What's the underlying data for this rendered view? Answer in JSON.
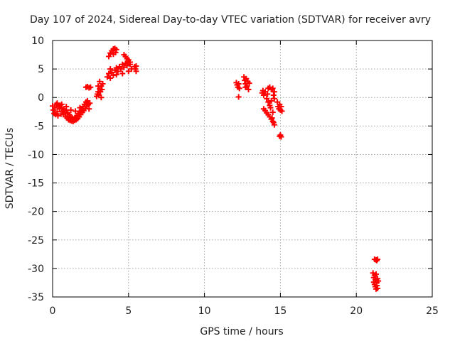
{
  "chart_data": {
    "type": "scatter",
    "title": "Day 107 of 2024, Sidereal Day-to-day VTEC variation (SDTVAR) for receiver avry",
    "xlabel": "GPS time / hours",
    "ylabel": "SDTVAR / TECUs",
    "xlim": [
      0,
      25
    ],
    "ylim": [
      -35,
      10
    ],
    "xticks": [
      0,
      5,
      10,
      15,
      20,
      25
    ],
    "yticks": [
      10,
      5,
      0,
      -5,
      -10,
      -15,
      -20,
      -25,
      -30,
      -35
    ],
    "grid": true,
    "marker": "plus",
    "series": [
      {
        "name": "SDTVAR",
        "color": "#ff0000",
        "points": [
          [
            0.0,
            -1.5
          ],
          [
            0.05,
            -2.2
          ],
          [
            0.1,
            -2.8
          ],
          [
            0.15,
            -1.8
          ],
          [
            0.2,
            -3.0
          ],
          [
            0.25,
            -1.2
          ],
          [
            0.3,
            -2.5
          ],
          [
            0.35,
            -3.2
          ],
          [
            0.4,
            -1.6
          ],
          [
            0.45,
            -2.0
          ],
          [
            0.5,
            -1.4
          ],
          [
            0.55,
            -2.9
          ],
          [
            0.6,
            -1.8
          ],
          [
            0.65,
            -2.4
          ],
          [
            0.7,
            -3.0
          ],
          [
            0.75,
            -2.0
          ],
          [
            0.8,
            -2.6
          ],
          [
            0.85,
            -3.3
          ],
          [
            0.9,
            -2.2
          ],
          [
            0.95,
            -3.6
          ],
          [
            1.0,
            -2.8
          ],
          [
            1.05,
            -3.9
          ],
          [
            1.1,
            -3.0
          ],
          [
            1.15,
            -4.0
          ],
          [
            1.2,
            -3.4
          ],
          [
            1.25,
            -4.1
          ],
          [
            1.3,
            -3.6
          ],
          [
            1.35,
            -4.2
          ],
          [
            1.4,
            -3.8
          ],
          [
            1.45,
            -4.0
          ],
          [
            1.5,
            -3.5
          ],
          [
            1.55,
            -3.9
          ],
          [
            1.6,
            -3.2
          ],
          [
            1.65,
            -3.7
          ],
          [
            1.7,
            -2.8
          ],
          [
            1.75,
            -3.4
          ],
          [
            1.8,
            -2.5
          ],
          [
            1.85,
            -3.0
          ],
          [
            1.9,
            -2.2
          ],
          [
            1.95,
            -2.6
          ],
          [
            2.0,
            -1.6
          ],
          [
            2.05,
            -2.3
          ],
          [
            2.1,
            -1.2
          ],
          [
            2.15,
            -1.9
          ],
          [
            2.2,
            -0.8
          ],
          [
            2.25,
            -1.5
          ],
          [
            2.3,
            -0.6
          ],
          [
            2.35,
            -1.2
          ],
          [
            2.4,
            -2.0
          ],
          [
            2.45,
            -1.0
          ],
          [
            0.3,
            -1.0
          ],
          [
            0.6,
            -1.2
          ],
          [
            0.9,
            -1.6
          ],
          [
            1.2,
            -2.2
          ],
          [
            1.5,
            -2.4
          ],
          [
            1.8,
            -1.8
          ],
          [
            2.2,
            1.8
          ],
          [
            2.3,
            1.9
          ],
          [
            2.4,
            1.7
          ],
          [
            2.5,
            1.8
          ],
          [
            2.9,
            0.2
          ],
          [
            2.95,
            0.6
          ],
          [
            3.0,
            1.0
          ],
          [
            3.05,
            0.4
          ],
          [
            3.1,
            1.5
          ],
          [
            3.15,
            1.0
          ],
          [
            3.2,
            2.0
          ],
          [
            3.25,
            1.4
          ],
          [
            3.3,
            2.4
          ],
          [
            3.0,
            2.0
          ],
          [
            3.1,
            2.8
          ],
          [
            3.2,
            0.0
          ],
          [
            3.6,
            3.6
          ],
          [
            3.7,
            4.2
          ],
          [
            3.8,
            5.0
          ],
          [
            3.9,
            4.4
          ],
          [
            4.0,
            3.9
          ],
          [
            4.1,
            4.8
          ],
          [
            4.2,
            5.2
          ],
          [
            4.3,
            4.6
          ],
          [
            4.4,
            5.4
          ],
          [
            4.5,
            5.0
          ],
          [
            4.6,
            5.8
          ],
          [
            4.7,
            5.3
          ],
          [
            4.8,
            6.0
          ],
          [
            4.9,
            5.6
          ],
          [
            5.0,
            6.2
          ],
          [
            5.1,
            5.8
          ],
          [
            5.2,
            5.0
          ],
          [
            5.0,
            4.6
          ],
          [
            4.6,
            4.2
          ],
          [
            4.2,
            4.0
          ],
          [
            3.8,
            3.4
          ],
          [
            4.8,
            7.2
          ],
          [
            4.9,
            6.8
          ],
          [
            5.0,
            6.6
          ],
          [
            5.1,
            6.2
          ],
          [
            4.7,
            7.5
          ],
          [
            3.7,
            7.2
          ],
          [
            3.8,
            7.8
          ],
          [
            3.9,
            8.2
          ],
          [
            4.0,
            8.5
          ],
          [
            4.1,
            8.6
          ],
          [
            4.2,
            8.4
          ],
          [
            4.15,
            7.9
          ],
          [
            4.0,
            7.6
          ],
          [
            5.4,
            5.4
          ],
          [
            5.45,
            5.0
          ],
          [
            5.5,
            4.6
          ],
          [
            5.5,
            5.5
          ],
          [
            12.1,
            2.6
          ],
          [
            12.15,
            2.2
          ],
          [
            12.2,
            1.8
          ],
          [
            12.25,
            2.4
          ],
          [
            12.3,
            1.6
          ],
          [
            12.25,
            0.1
          ],
          [
            12.6,
            3.6
          ],
          [
            12.65,
            3.0
          ],
          [
            12.7,
            2.4
          ],
          [
            12.75,
            3.3
          ],
          [
            12.8,
            2.0
          ],
          [
            12.85,
            2.8
          ],
          [
            12.9,
            1.4
          ],
          [
            12.95,
            2.5
          ],
          [
            12.7,
            1.8
          ],
          [
            13.8,
            0.8
          ],
          [
            13.85,
            1.2
          ],
          [
            13.9,
            0.4
          ],
          [
            14.0,
            1.0
          ],
          [
            14.1,
            -0.2
          ],
          [
            14.15,
            0.6
          ],
          [
            14.2,
            -0.8
          ],
          [
            14.3,
            -1.4
          ],
          [
            14.35,
            -1.8
          ],
          [
            14.4,
            -0.6
          ],
          [
            14.5,
            -2.6
          ],
          [
            14.2,
            1.6
          ],
          [
            14.3,
            1.8
          ],
          [
            14.4,
            1.4
          ],
          [
            14.5,
            1.6
          ],
          [
            14.6,
            1.0
          ],
          [
            14.55,
            0.4
          ],
          [
            14.6,
            -0.2
          ],
          [
            13.9,
            -2.0
          ],
          [
            14.0,
            -2.3
          ],
          [
            14.1,
            -2.7
          ],
          [
            14.2,
            -3.0
          ],
          [
            14.3,
            -3.4
          ],
          [
            14.4,
            -3.8
          ],
          [
            14.5,
            -4.2
          ],
          [
            14.6,
            -4.8
          ],
          [
            14.45,
            -3.6
          ],
          [
            14.55,
            -4.4
          ],
          [
            14.8,
            -0.8
          ],
          [
            14.85,
            -1.6
          ],
          [
            14.9,
            -2.0
          ],
          [
            14.95,
            -1.2
          ],
          [
            15.0,
            -2.2
          ],
          [
            15.05,
            -1.6
          ],
          [
            15.1,
            -2.4
          ],
          [
            15.0,
            -6.6
          ],
          [
            15.05,
            -6.9
          ],
          [
            14.95,
            -6.8
          ],
          [
            21.2,
            -28.4
          ],
          [
            21.3,
            -28.5
          ],
          [
            21.4,
            -28.4
          ],
          [
            21.35,
            -28.6
          ],
          [
            21.1,
            -30.8
          ],
          [
            21.15,
            -31.6
          ],
          [
            21.2,
            -31.2
          ],
          [
            21.25,
            -32.0
          ],
          [
            21.3,
            -31.0
          ],
          [
            21.35,
            -32.5
          ],
          [
            21.4,
            -31.8
          ],
          [
            21.2,
            -32.8
          ],
          [
            21.25,
            -33.2
          ],
          [
            21.3,
            -33.6
          ],
          [
            21.35,
            -33.0
          ],
          [
            21.4,
            -33.5
          ],
          [
            21.45,
            -32.2
          ],
          [
            21.15,
            -32.4
          ]
        ]
      }
    ]
  }
}
